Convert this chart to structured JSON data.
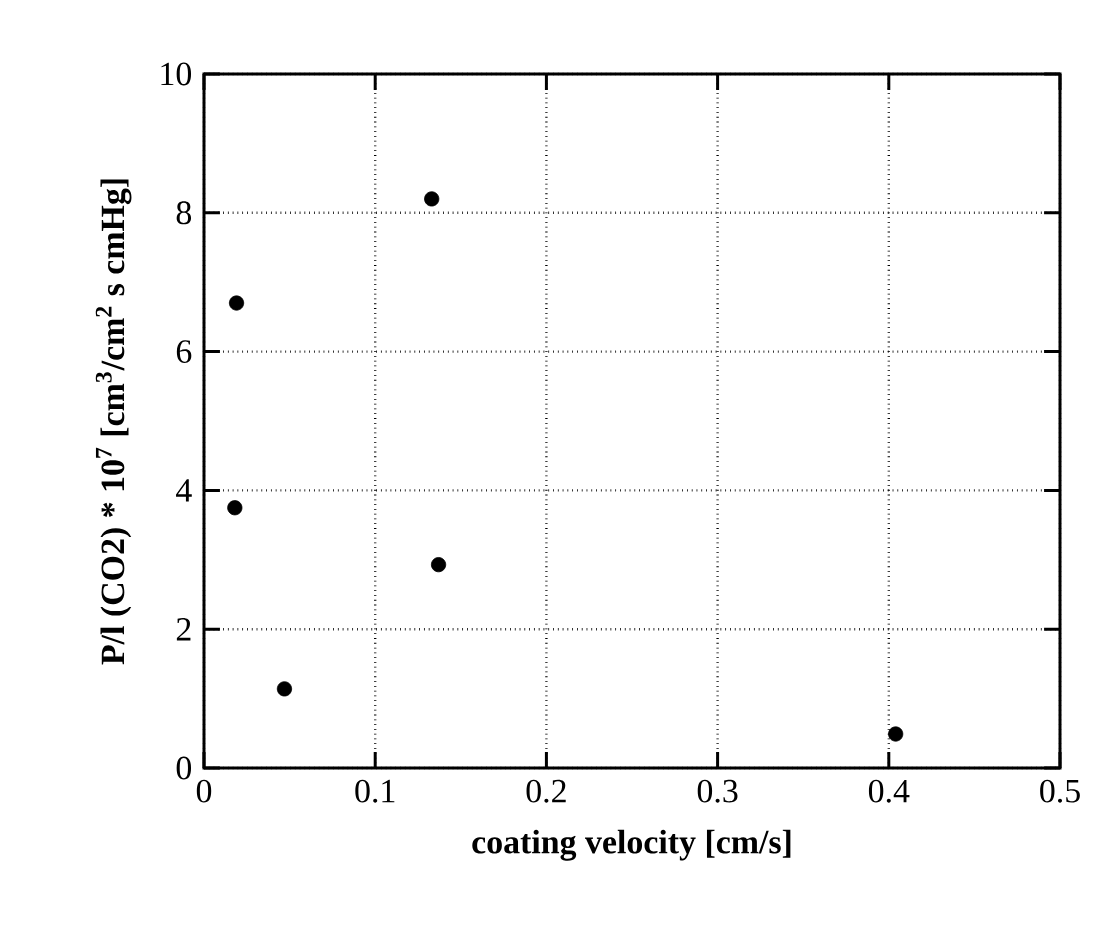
{
  "chart_data": {
    "type": "scatter",
    "xlabel": "coating velocity [cm/s]",
    "ylabel": "P/l (CO2) * 10$^{7}$ [cm$^{3}$/cm$^{2}$ s cmHg]",
    "x": [
      0.019,
      0.018,
      0.047,
      0.133,
      0.137,
      0.404
    ],
    "values": [
      6.7,
      3.75,
      1.14,
      8.2,
      2.93,
      0.49
    ],
    "color": "#000000",
    "marker": "circle",
    "xlim": [
      0,
      0.5
    ],
    "xticks": [
      0,
      0.1,
      0.2,
      0.3,
      0.4,
      0.5
    ],
    "ylim": [
      0,
      10
    ],
    "yticks": [
      0,
      2,
      4,
      6,
      8,
      10
    ],
    "grid": true
  }
}
